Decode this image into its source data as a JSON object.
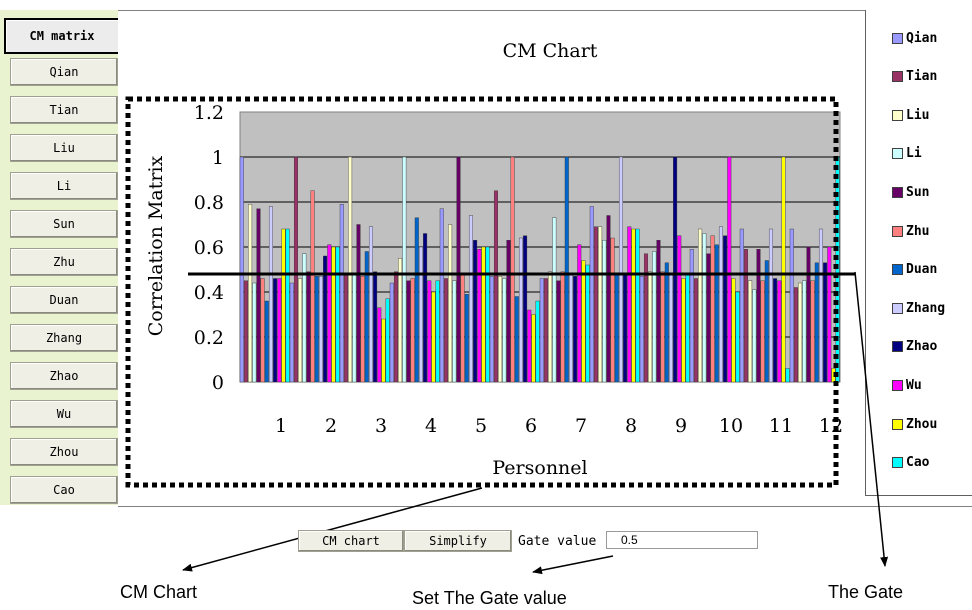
{
  "sidebar": {
    "primary_label": "CM matrix",
    "items": [
      "Qian",
      "Tian",
      "Liu",
      "Li",
      "Sun",
      "Zhu",
      "Duan",
      "Zhang",
      "Zhao",
      "Wu",
      "Zhou",
      "Cao"
    ]
  },
  "controls": {
    "cm_chart_label": "CM chart",
    "simplify_label": "Simplify",
    "gate_label": "Gate value",
    "gate_value": "0.5"
  },
  "annotations": {
    "cm_chart": "CM Chart",
    "set_gate": "Set The Gate value",
    "the_gate": "The Gate"
  },
  "chart_data": {
    "type": "bar",
    "title": "CM Chart",
    "xlabel": "Personnel",
    "ylabel": "Correlation Matrix",
    "ylim": [
      0,
      1.2
    ],
    "yticks": [
      "0",
      "0.2",
      "0.4",
      "0.6",
      "0.8",
      "1",
      "1.2"
    ],
    "categories": [
      "1",
      "2",
      "3",
      "4",
      "5",
      "6",
      "7",
      "8",
      "9",
      "10",
      "11",
      "12"
    ],
    "grid": true,
    "legend_position": "right",
    "gate_line": 0.48,
    "series": [
      {
        "name": "Qian",
        "color": "#9999ff",
        "values": [
          1.0,
          0.44,
          0.79,
          0.44,
          0.77,
          0.47,
          0.46,
          0.78,
          0.47,
          0.59,
          0.68,
          0.68
        ]
      },
      {
        "name": "Tian",
        "color": "#993366",
        "values": [
          0.45,
          1.0,
          0.48,
          0.49,
          0.46,
          0.85,
          0.46,
          0.69,
          0.57,
          0.46,
          0.59,
          0.42
        ]
      },
      {
        "name": "Liu",
        "color": "#ffffcc",
        "values": [
          0.79,
          0.46,
          1.0,
          0.55,
          0.7,
          0.47,
          0.49,
          0.69,
          0.49,
          0.68,
          0.45,
          0.44
        ]
      },
      {
        "name": "Li",
        "color": "#ccffff",
        "values": [
          0.44,
          0.57,
          0.48,
          1.0,
          0.45,
          0.46,
          0.73,
          0.63,
          0.58,
          0.66,
          0.41,
          0.45
        ]
      },
      {
        "name": "Sun",
        "color": "#660066",
        "values": [
          0.77,
          0.49,
          0.7,
          0.45,
          1.0,
          0.63,
          0.45,
          0.74,
          0.63,
          0.57,
          0.59,
          0.6
        ]
      },
      {
        "name": "Zhu",
        "color": "#ff8080",
        "values": [
          0.46,
          0.85,
          0.47,
          0.46,
          0.48,
          1.0,
          0.49,
          0.64,
          0.49,
          0.65,
          0.45,
          0.45
        ]
      },
      {
        "name": "Duan",
        "color": "#0066cc",
        "values": [
          0.36,
          0.47,
          0.58,
          0.73,
          0.39,
          0.38,
          1.0,
          0.48,
          0.53,
          0.61,
          0.54,
          0.53
        ]
      },
      {
        "name": "Zhang",
        "color": "#ccccff",
        "values": [
          0.78,
          0.47,
          0.69,
          0.6,
          0.74,
          0.64,
          0.48,
          1.0,
          0.48,
          0.69,
          0.68,
          0.68
        ]
      },
      {
        "name": "Zhao",
        "color": "#000080",
        "values": [
          0.46,
          0.56,
          0.49,
          0.66,
          0.63,
          0.65,
          0.47,
          0.48,
          1.0,
          0.65,
          0.46,
          0.53
        ]
      },
      {
        "name": "Wu",
        "color": "#ff00ff",
        "values": [
          0.46,
          0.61,
          0.33,
          0.45,
          0.59,
          0.32,
          0.61,
          0.69,
          0.65,
          1.0,
          0.45,
          0.6
        ]
      },
      {
        "name": "Zhou",
        "color": "#ffff00",
        "values": [
          0.68,
          0.6,
          0.28,
          0.4,
          0.6,
          0.3,
          0.54,
          0.68,
          0.46,
          0.46,
          1.0,
          0.06
        ]
      },
      {
        "name": "Cao",
        "color": "#00ffff",
        "values": [
          0.68,
          0.6,
          0.37,
          0.45,
          0.6,
          0.36,
          0.52,
          0.68,
          0.48,
          0.4,
          0.06,
          1.0
        ]
      }
    ]
  }
}
